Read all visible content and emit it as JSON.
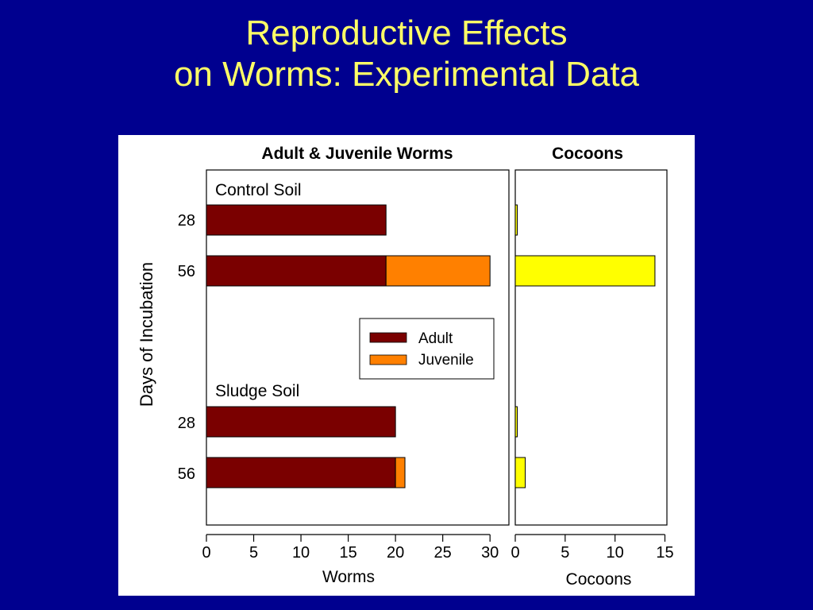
{
  "slide": {
    "title_line1": "Reproductive Effects",
    "title_line2": "on Worms: Experimental Data"
  },
  "colors": {
    "background": "#00008f",
    "title": "#ffff66",
    "adult": "#7a0000",
    "juvenile": "#ff8000",
    "cocoons": "#ffff00"
  },
  "chart_data": [
    {
      "type": "bar",
      "orientation": "horizontal",
      "stacked": true,
      "title": "Adult & Juvenile Worms",
      "xlabel": "Worms",
      "ylabel": "Days of Incubation",
      "xlim": [
        0,
        32
      ],
      "xticks": [
        0,
        5,
        10,
        15,
        20,
        25,
        30
      ],
      "groups": [
        "Control Soil",
        "Sludge Soil"
      ],
      "categories": [
        "28",
        "56",
        "28",
        "56"
      ],
      "category_group": [
        0,
        0,
        1,
        1
      ],
      "series": [
        {
          "name": "Adult",
          "values": [
            19,
            19,
            20,
            20
          ]
        },
        {
          "name": "Juvenile",
          "values": [
            0,
            11,
            0,
            1
          ]
        }
      ],
      "legend": {
        "position": "right",
        "entries": [
          "Adult",
          "Juvenile"
        ]
      }
    },
    {
      "type": "bar",
      "orientation": "horizontal",
      "title": "Cocoons",
      "xlabel": "Cocoons",
      "ylabel": "",
      "xlim": [
        0,
        15.2
      ],
      "xticks": [
        0,
        5,
        10,
        15
      ],
      "categories": [
        "28",
        "56",
        "28",
        "56"
      ],
      "values": [
        0.2,
        14,
        0.2,
        1
      ]
    }
  ]
}
